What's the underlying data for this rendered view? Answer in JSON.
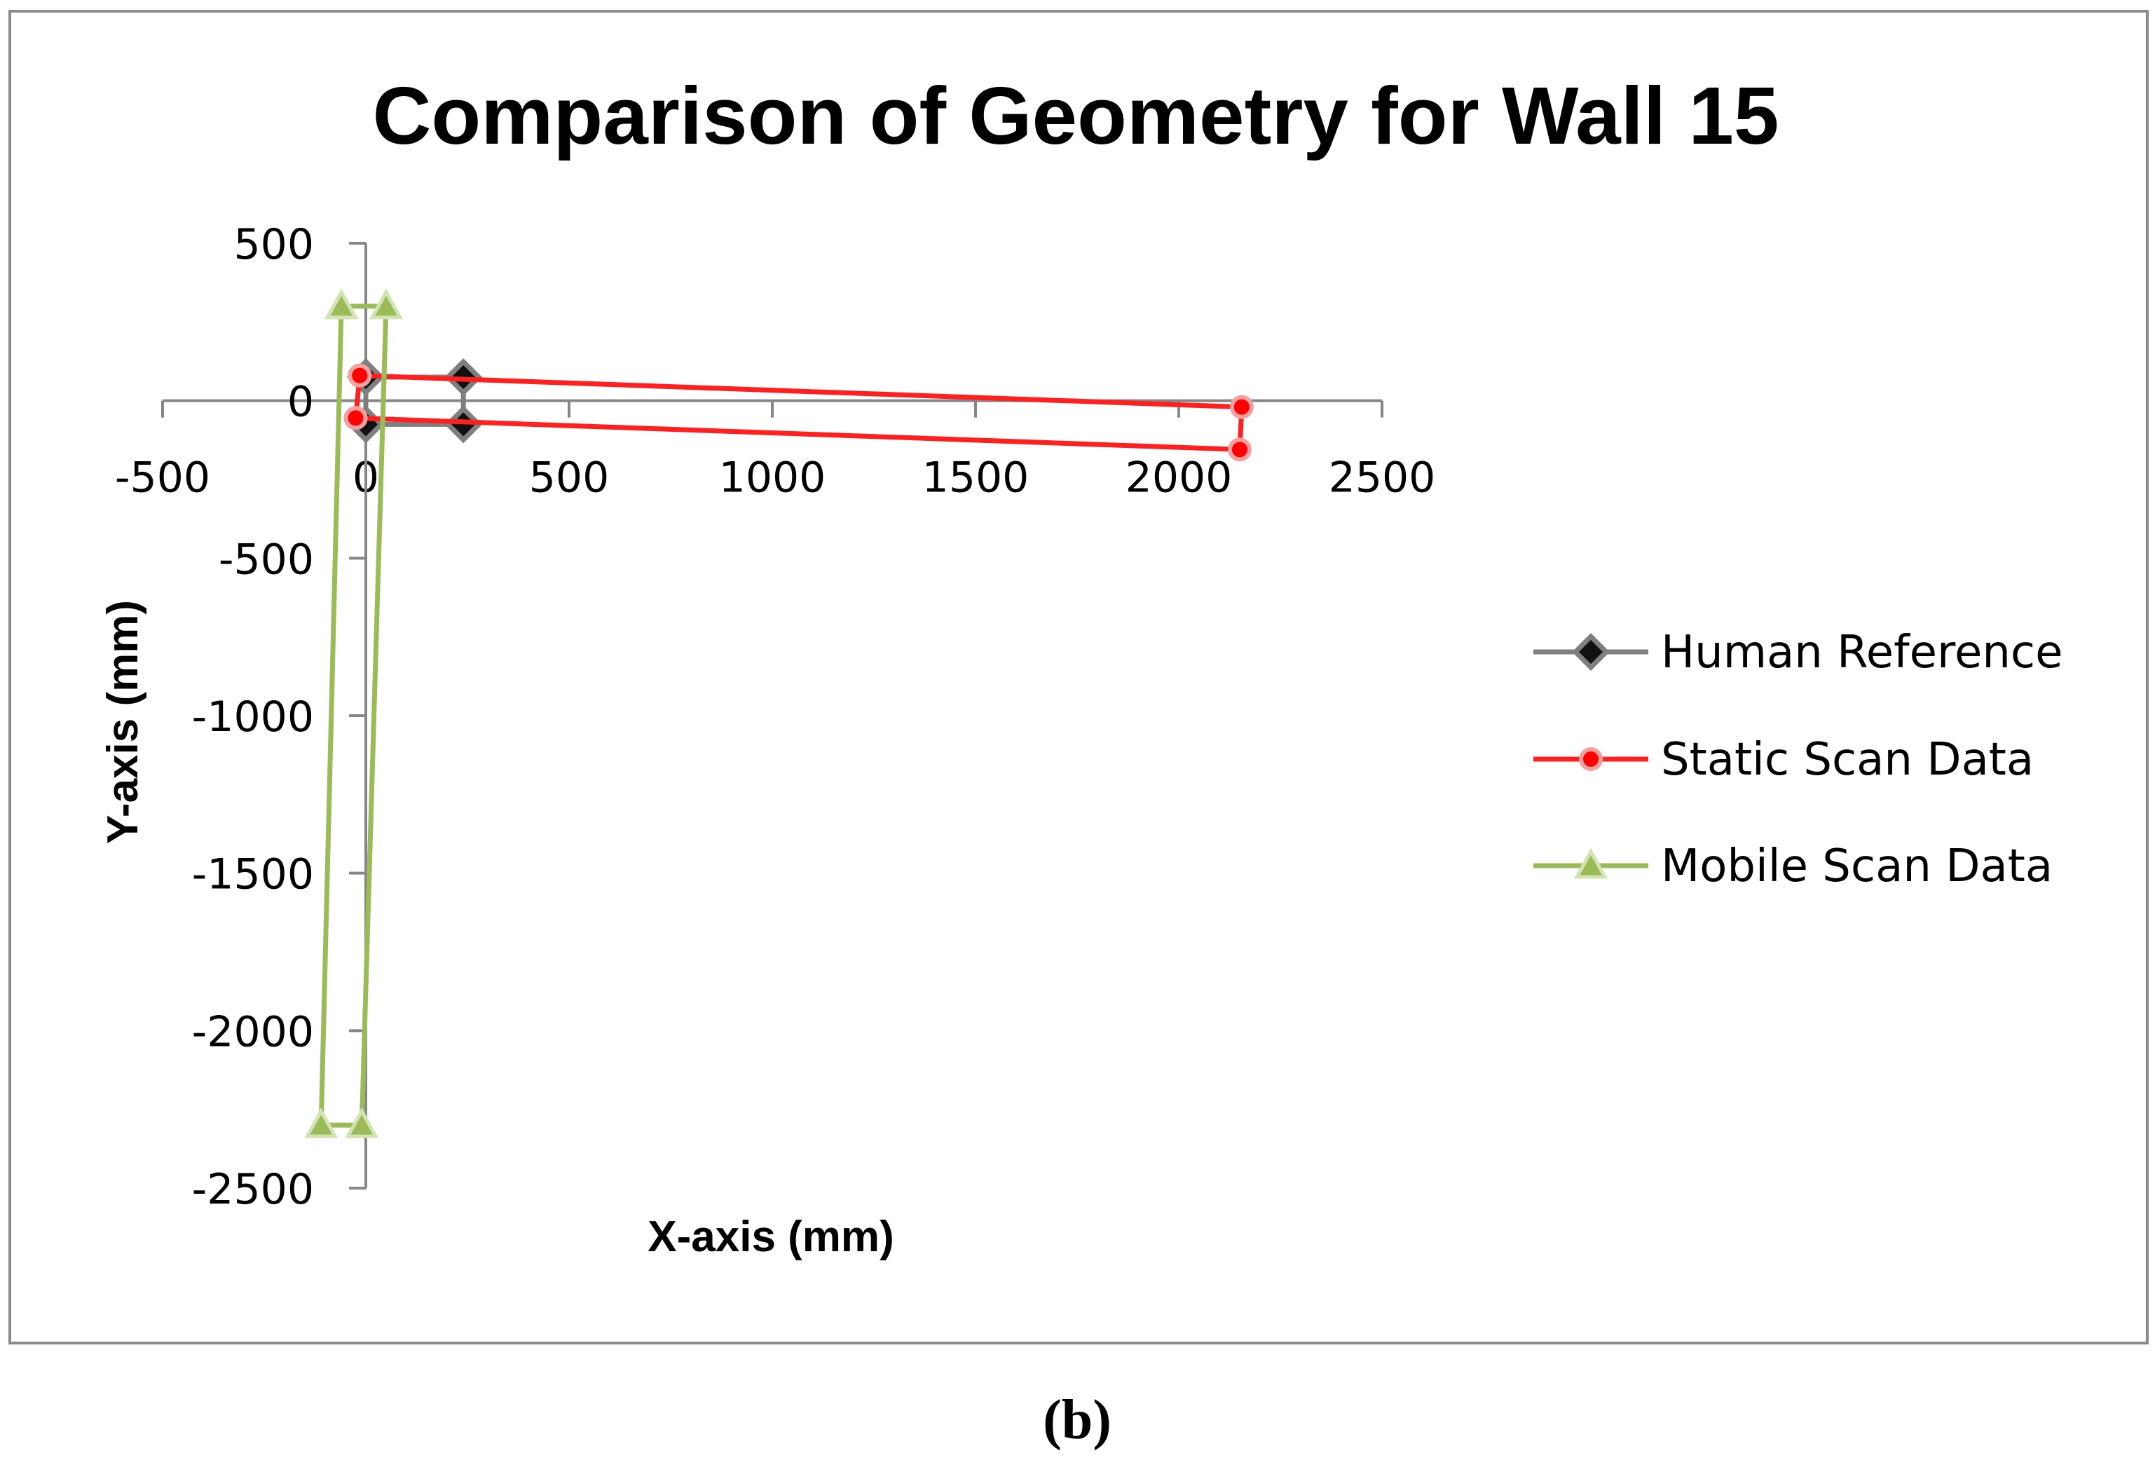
{
  "chart_data": {
    "type": "line",
    "title": "Comparison of Geometry for Wall 15",
    "xlabel": "X-axis (mm)",
    "ylabel": "Y-axis (mm)",
    "xlim": [
      -500,
      2500
    ],
    "ylim": [
      -2500,
      500
    ],
    "x_ticks": [
      -500,
      0,
      500,
      1000,
      1500,
      2000,
      2500
    ],
    "y_ticks": [
      500,
      0,
      -500,
      -1000,
      -1500,
      -2000,
      -2500
    ],
    "x_tick_labels": [
      "-500",
      "0",
      "500",
      "1000",
      "1500",
      "2000",
      "2500"
    ],
    "y_tick_labels": [
      "500",
      "0",
      "-500",
      "-1000",
      "-1500",
      "-2000",
      "-2500"
    ],
    "grid": false,
    "legend_position": "right",
    "series": [
      {
        "name": "Human Reference",
        "color": "#7f7f7f",
        "marker": "diamond",
        "points": [
          [
            0,
            -75
          ],
          [
            240,
            -75
          ],
          [
            240,
            75
          ],
          [
            0,
            75
          ],
          [
            0,
            -75
          ]
        ]
      },
      {
        "name": "Static Scan Data",
        "color": "#ff2020",
        "marker": "circle",
        "points": [
          [
            -25,
            -55
          ],
          [
            2150,
            -155
          ],
          [
            2155,
            -20
          ],
          [
            -15,
            80
          ],
          [
            -25,
            -55
          ]
        ]
      },
      {
        "name": "Mobile Scan Data",
        "color": "#9bbb59",
        "marker": "triangle",
        "points": [
          [
            -60,
            300
          ],
          [
            50,
            300
          ],
          [
            -10,
            -2300
          ],
          [
            -110,
            -2300
          ],
          [
            -60,
            300
          ]
        ]
      }
    ],
    "caption": "(b)"
  }
}
